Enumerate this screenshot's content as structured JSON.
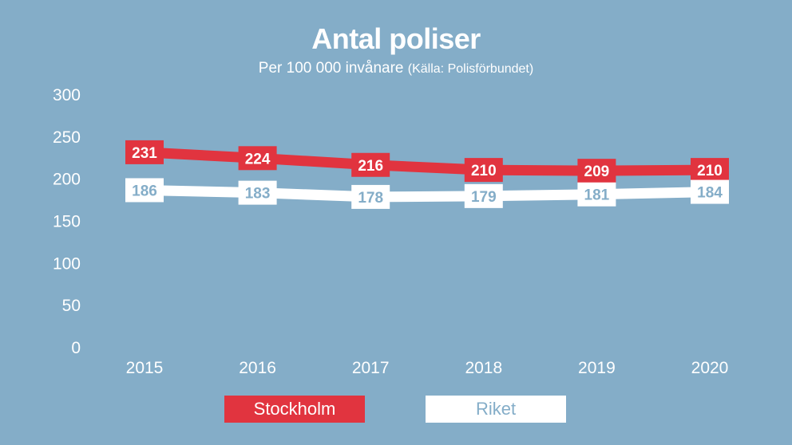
{
  "title": "Antal poliser",
  "subtitle": "Per 100 000 invånare",
  "source": "(Källa: Polisförbundet)",
  "colors": {
    "background": "#84adc8",
    "stockholm": "#e1343f",
    "riket": "#ffffff",
    "riket_label_text": "#84adc8"
  },
  "chart_data": {
    "type": "line",
    "title": "Antal poliser",
    "subtitle": "Per 100 000 invånare (Källa: Polisförbundet)",
    "x": [
      "2015",
      "2016",
      "2017",
      "2018",
      "2019",
      "2020"
    ],
    "ylim": [
      0,
      300
    ],
    "yticks": [
      "0",
      "50",
      "100",
      "150",
      "200",
      "250",
      "300"
    ],
    "grid": false,
    "legend_position": "bottom",
    "series": [
      {
        "name": "Stockholm",
        "color": "#e1343f",
        "values": [
          231,
          224,
          216,
          210,
          209,
          210
        ]
      },
      {
        "name": "Riket",
        "color": "#ffffff",
        "values": [
          186,
          183,
          178,
          179,
          181,
          184
        ]
      }
    ]
  }
}
